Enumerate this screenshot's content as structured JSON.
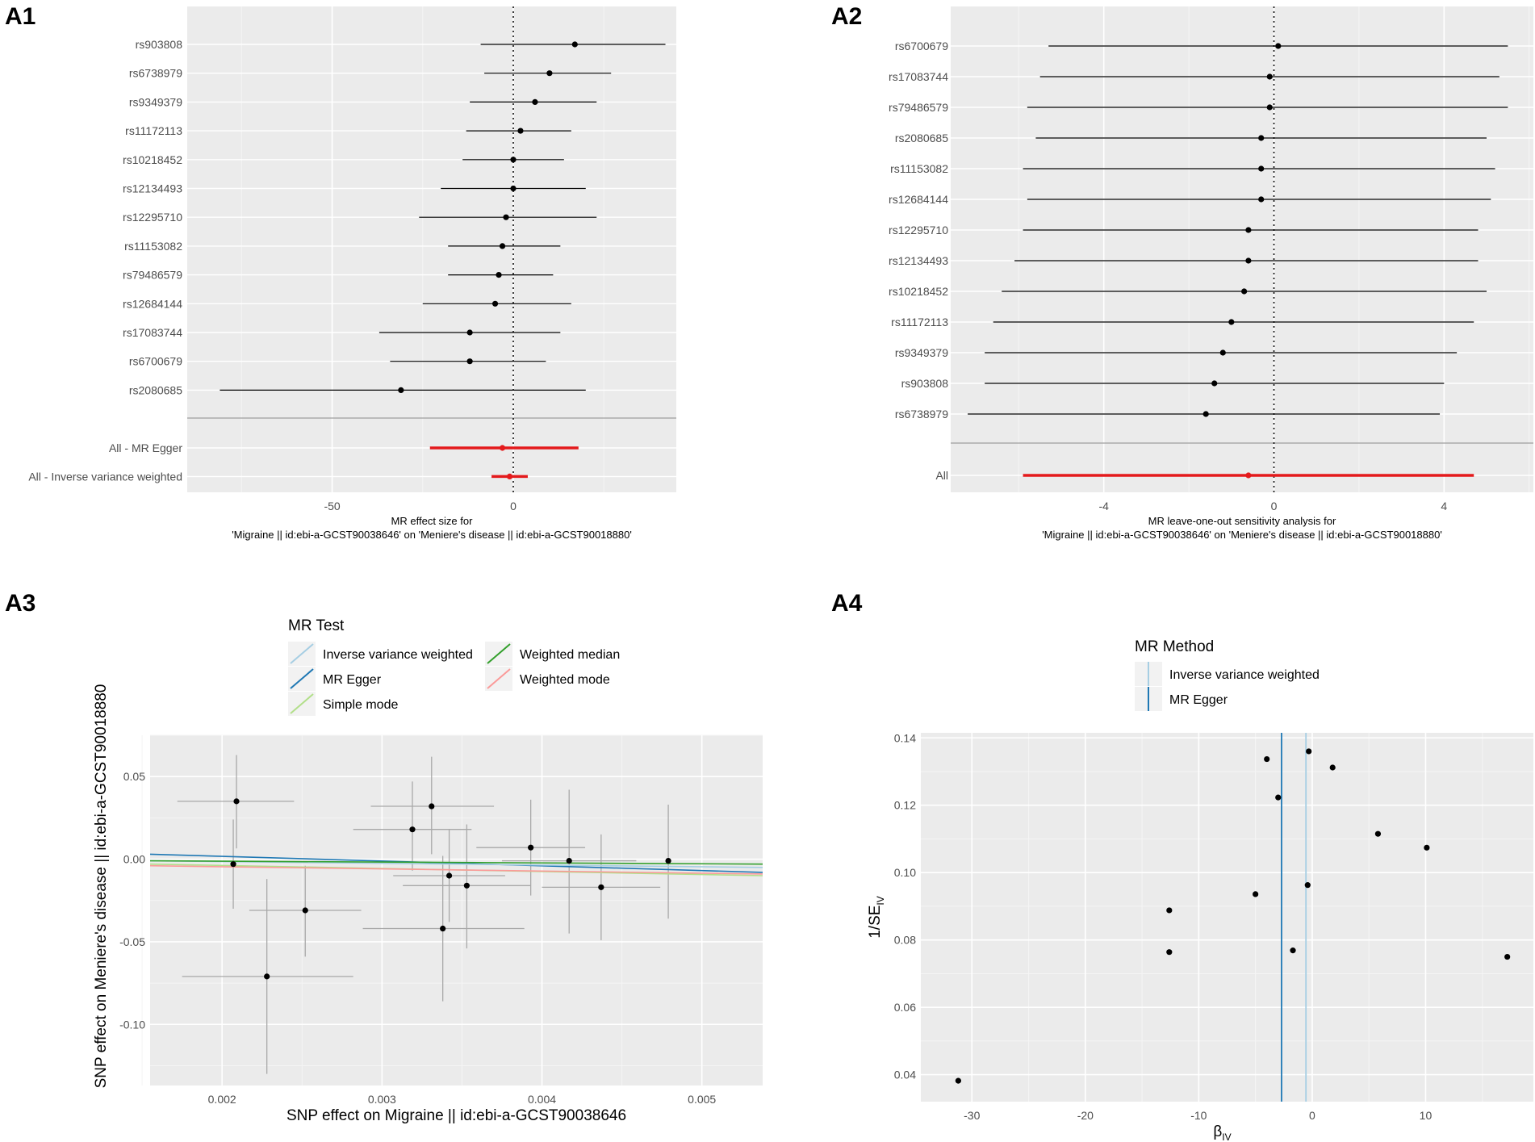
{
  "chart_data": [
    {
      "panel": "A1",
      "type": "forest",
      "title": "",
      "xlabel": "MR effect size for",
      "xlabel2": "'Migraine || id:ebi-a-GCST90038646' on 'Meniere's disease || id:ebi-a-GCST90018880'",
      "xlim": [
        -90,
        45
      ],
      "xticks": [
        -50,
        0
      ],
      "reference_line": 0,
      "snps": [
        {
          "label": "rs903808",
          "b": 17,
          "lo": -9,
          "hi": 42
        },
        {
          "label": "rs6738979",
          "b": 10,
          "lo": -8,
          "hi": 27
        },
        {
          "label": "rs9349379",
          "b": 6,
          "lo": -12,
          "hi": 23
        },
        {
          "label": "rs11172113",
          "b": 2,
          "lo": -13,
          "hi": 16
        },
        {
          "label": "rs10218452",
          "b": 0,
          "lo": -14,
          "hi": 14
        },
        {
          "label": "rs12134493",
          "b": 0,
          "lo": -20,
          "hi": 20
        },
        {
          "label": "rs12295710",
          "b": -2,
          "lo": -26,
          "hi": 23
        },
        {
          "label": "rs11153082",
          "b": -3,
          "lo": -18,
          "hi": 13
        },
        {
          "label": "rs79486579",
          "b": -4,
          "lo": -18,
          "hi": 11
        },
        {
          "label": "rs12684144",
          "b": -5,
          "lo": -25,
          "hi": 16
        },
        {
          "label": "rs17083744",
          "b": -12,
          "lo": -37,
          "hi": 13
        },
        {
          "label": "rs6700679",
          "b": -12,
          "lo": -34,
          "hi": 9
        },
        {
          "label": "rs2080685",
          "b": -31,
          "lo": -81,
          "hi": 20
        }
      ],
      "overall": [
        {
          "label": "All - MR Egger",
          "b": -3,
          "lo": -23,
          "hi": 18
        },
        {
          "label": "All - Inverse variance weighted",
          "b": -1,
          "lo": -6,
          "hi": 4
        }
      ]
    },
    {
      "panel": "A2",
      "type": "forest",
      "title": "",
      "xlabel": "MR leave-one-out sensitivity analysis for",
      "xlabel2": "'Migraine || id:ebi-a-GCST90038646' on 'Meniere's disease || id:ebi-a-GCST90018880'",
      "xlim": [
        -7.6,
        6.1
      ],
      "xticks": [
        -4,
        0,
        4
      ],
      "reference_line": 0,
      "snps": [
        {
          "label": "rs6700679",
          "b": 0.1,
          "lo": -5.3,
          "hi": 5.5
        },
        {
          "label": "rs17083744",
          "b": -0.1,
          "lo": -5.5,
          "hi": 5.3
        },
        {
          "label": "rs79486579",
          "b": -0.1,
          "lo": -5.8,
          "hi": 5.5
        },
        {
          "label": "rs2080685",
          "b": -0.3,
          "lo": -5.6,
          "hi": 5.0
        },
        {
          "label": "rs11153082",
          "b": -0.3,
          "lo": -5.9,
          "hi": 5.2
        },
        {
          "label": "rs12684144",
          "b": -0.3,
          "lo": -5.8,
          "hi": 5.1
        },
        {
          "label": "rs12295710",
          "b": -0.6,
          "lo": -5.9,
          "hi": 4.8
        },
        {
          "label": "rs12134493",
          "b": -0.6,
          "lo": -6.1,
          "hi": 4.8
        },
        {
          "label": "rs10218452",
          "b": -0.7,
          "lo": -6.4,
          "hi": 5.0
        },
        {
          "label": "rs11172113",
          "b": -1.0,
          "lo": -6.6,
          "hi": 4.7
        },
        {
          "label": "rs9349379",
          "b": -1.2,
          "lo": -6.8,
          "hi": 4.3
        },
        {
          "label": "rs903808",
          "b": -1.4,
          "lo": -6.8,
          "hi": 4.0
        },
        {
          "label": "rs6738979",
          "b": -1.6,
          "lo": -7.2,
          "hi": 3.9
        }
      ],
      "overall": [
        {
          "label": "All",
          "b": -0.6,
          "lo": -5.9,
          "hi": 4.7
        }
      ]
    },
    {
      "panel": "A3",
      "type": "scatter",
      "title": "",
      "xlabel": "SNP effect on Migraine || id:ebi-a-GCST90038646",
      "ylabel": "SNP effect on Meniere's disease || id:ebi-a-GCST90018880",
      "xlim": [
        0.00155,
        0.00538
      ],
      "ylim": [
        -0.137,
        0.075
      ],
      "xticks": [
        "0.002",
        "0.003",
        "0.004",
        "0.005"
      ],
      "yticks": [
        "0.05",
        "0.00",
        "-0.05",
        "-0.10"
      ],
      "legend_title": "MR Test",
      "legend": [
        {
          "name": "Inverse variance weighted",
          "color": "#a6cee3"
        },
        {
          "name": "MR Egger",
          "color": "#1f78b4"
        },
        {
          "name": "Simple mode",
          "color": "#b2df8a"
        },
        {
          "name": "Weighted median",
          "color": "#33a02c"
        },
        {
          "name": "Weighted mode",
          "color": "#fb9a99"
        }
      ],
      "points": [
        {
          "x": 0.00209,
          "y": 0.035,
          "xlo": 0.00172,
          "xhi": 0.00245,
          "ylo": 0.0065,
          "yhi": 0.063
        },
        {
          "x": 0.00207,
          "y": -0.003,
          "xlo": 0.00207,
          "xhi": 0.00207,
          "ylo": -0.03,
          "yhi": 0.024
        },
        {
          "x": 0.00228,
          "y": -0.071,
          "xlo": 0.00175,
          "xhi": 0.00282,
          "ylo": -0.13,
          "yhi": -0.012
        },
        {
          "x": 0.00252,
          "y": -0.031,
          "xlo": 0.00217,
          "xhi": 0.00287,
          "ylo": -0.059,
          "yhi": -0.004
        },
        {
          "x": 0.00319,
          "y": 0.018,
          "xlo": 0.00282,
          "xhi": 0.00356,
          "ylo": -0.007,
          "yhi": 0.047
        },
        {
          "x": 0.00331,
          "y": 0.032,
          "xlo": 0.00293,
          "xhi": 0.0037,
          "ylo": 0.003,
          "yhi": 0.062
        },
        {
          "x": 0.00338,
          "y": -0.042,
          "xlo": 0.00288,
          "xhi": 0.00389,
          "ylo": -0.086,
          "yhi": 0.002
        },
        {
          "x": 0.00342,
          "y": -0.01,
          "xlo": 0.00307,
          "xhi": 0.00377,
          "ylo": -0.038,
          "yhi": 0.018
        },
        {
          "x": 0.00353,
          "y": -0.016,
          "xlo": 0.00313,
          "xhi": 0.00393,
          "ylo": -0.054,
          "yhi": 0.021
        },
        {
          "x": 0.00393,
          "y": 0.007,
          "xlo": 0.00359,
          "xhi": 0.00427,
          "ylo": -0.022,
          "yhi": 0.036
        },
        {
          "x": 0.00417,
          "y": -0.001,
          "xlo": 0.00375,
          "xhi": 0.00459,
          "ylo": -0.045,
          "yhi": 0.042
        },
        {
          "x": 0.00437,
          "y": -0.017,
          "xlo": 0.004,
          "xhi": 0.00474,
          "ylo": -0.049,
          "yhi": 0.015
        },
        {
          "x": 0.00479,
          "y": -0.001,
          "xlo": 0.00479,
          "xhi": 0.00479,
          "ylo": -0.036,
          "yhi": 0.033
        }
      ],
      "lines": [
        {
          "name": "MR Egger",
          "y0": 0.003,
          "y1": -0.008
        },
        {
          "name": "Inverse variance weighted",
          "y0": -0.001,
          "y1": -0.005
        },
        {
          "name": "Weighted median",
          "y0": -0.001,
          "y1": -0.003
        },
        {
          "name": "Simple mode",
          "y0": -0.003,
          "y1": -0.01
        },
        {
          "name": "Weighted mode",
          "y0": -0.004,
          "y1": -0.009
        }
      ]
    },
    {
      "panel": "A4",
      "type": "scatter",
      "title": "",
      "xlabel": "β",
      "xlabel_sub": "IV",
      "ylabel": "1/SE",
      "ylabel_sub": "IV",
      "xlim": [
        -34.5,
        19.5
      ],
      "ylim": [
        0.032,
        0.1415
      ],
      "xticks": [
        "-30",
        "-20",
        "-10",
        "0",
        "10"
      ],
      "yticks": [
        "0.14",
        "0.12",
        "0.10",
        "0.08",
        "0.06",
        "0.04"
      ],
      "legend_title": "MR Method",
      "legend": [
        {
          "name": "Inverse variance weighted",
          "color": "#a6cee3"
        },
        {
          "name": "MR Egger",
          "color": "#1f78b4"
        }
      ],
      "vlines": [
        {
          "name": "MR Egger",
          "x": -2.7
        },
        {
          "name": "Inverse variance weighted",
          "x": -0.55
        }
      ],
      "points": [
        {
          "x": -31.2,
          "y": 0.0382
        },
        {
          "x": -12.6,
          "y": 0.0888
        },
        {
          "x": -12.6,
          "y": 0.0764
        },
        {
          "x": -5.0,
          "y": 0.0936
        },
        {
          "x": -4.0,
          "y": 0.1337
        },
        {
          "x": -3.0,
          "y": 0.1223
        },
        {
          "x": -1.7,
          "y": 0.0769
        },
        {
          "x": -0.3,
          "y": 0.136
        },
        {
          "x": -0.4,
          "y": 0.0963
        },
        {
          "x": 1.8,
          "y": 0.1312
        },
        {
          "x": 5.8,
          "y": 0.1115
        },
        {
          "x": 10.1,
          "y": 0.1074
        },
        {
          "x": 17.2,
          "y": 0.075
        }
      ]
    }
  ]
}
